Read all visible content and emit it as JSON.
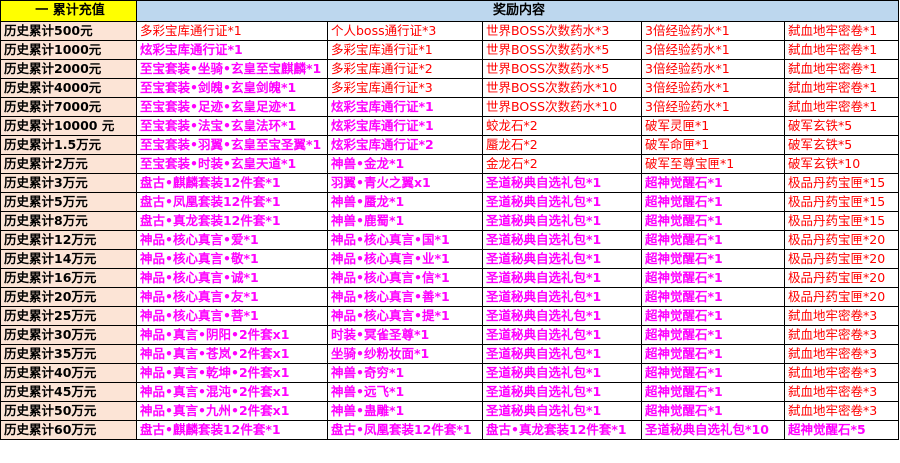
{
  "colors": {
    "red": "#ff0000",
    "magenta": "#ff00ff",
    "header_left": "#ffff00",
    "header_right": "#bdd7ee",
    "level_column": "#fce4d6"
  },
  "header": {
    "col1": "一  累计充值",
    "col2": "奖励内容"
  },
  "rows": [
    {
      "level": "历史累计500元",
      "cells": [
        {
          "text": "多彩宝库通行证*1",
          "style": "r"
        },
        {
          "text": "个人boss通行证*3",
          "style": "r"
        },
        {
          "text": "世界BOSS次数药水*3",
          "style": "r"
        },
        {
          "text": "3倍经验药水*1",
          "style": "r"
        },
        {
          "text": "弑血地牢密卷*1",
          "style": "r"
        }
      ]
    },
    {
      "level": "历史累计1000元",
      "cells": [
        {
          "text": "炫彩宝库通行证*1",
          "style": "m"
        },
        {
          "text": "多彩宝库通行证*1",
          "style": "r"
        },
        {
          "text": "世界BOSS次数药水*5",
          "style": "r"
        },
        {
          "text": "3倍经验药水*1",
          "style": "r"
        },
        {
          "text": "弑血地牢密卷*1",
          "style": "r"
        }
      ]
    },
    {
      "level": "历史累计2000元",
      "cells": [
        {
          "text": "至宝套装•坐骑•玄皇至宝麒麟*1",
          "style": "m"
        },
        {
          "text": "多彩宝库通行证*2",
          "style": "r"
        },
        {
          "text": "世界BOSS次数药水*5",
          "style": "r"
        },
        {
          "text": "3倍经验药水*1",
          "style": "r"
        },
        {
          "text": "弑血地牢密卷*1",
          "style": "r"
        }
      ]
    },
    {
      "level": "历史累计4000元",
      "cells": [
        {
          "text": "至宝套装•剑魄•玄皇剑魄*1",
          "style": "m"
        },
        {
          "text": "多彩宝库通行证*3",
          "style": "r"
        },
        {
          "text": "世界BOSS次数药水*10",
          "style": "r"
        },
        {
          "text": "3倍经验药水*1",
          "style": "r"
        },
        {
          "text": "弑血地牢密卷*1",
          "style": "r"
        }
      ]
    },
    {
      "level": "历史累计7000元",
      "cells": [
        {
          "text": "至宝套装•足迹•玄皇足迹*1",
          "style": "m"
        },
        {
          "text": "炫彩宝库通行证*1",
          "style": "m"
        },
        {
          "text": "世界BOSS次数药水*10",
          "style": "r"
        },
        {
          "text": "3倍经验药水*1",
          "style": "r"
        },
        {
          "text": "弑血地牢密卷*1",
          "style": "r"
        }
      ]
    },
    {
      "level": "历史累计10000 元",
      "cells": [
        {
          "text": "至宝套装•法宝•玄皇法环*1",
          "style": "m"
        },
        {
          "text": "炫彩宝库通行证*1",
          "style": "m"
        },
        {
          "text": "蛟龙石*2",
          "style": "r"
        },
        {
          "text": "破军灵匣*1",
          "style": "r"
        },
        {
          "text": "破军玄铁*5",
          "style": "r"
        }
      ]
    },
    {
      "level": "历史累计1.5万元",
      "cells": [
        {
          "text": "至宝套装•羽翼•玄皇至宝圣翼*1",
          "style": "m"
        },
        {
          "text": "炫彩宝库通行证*2",
          "style": "m"
        },
        {
          "text": "蜃龙石*2",
          "style": "r"
        },
        {
          "text": "破军命匣*1",
          "style": "r"
        },
        {
          "text": "破军玄铁*5",
          "style": "r"
        }
      ]
    },
    {
      "level": "历史累计2万元",
      "cells": [
        {
          "text": "至宝套装•时装•玄皇天道*1",
          "style": "m"
        },
        {
          "text": "神兽•金龙*1",
          "style": "m"
        },
        {
          "text": "金龙石*2",
          "style": "r"
        },
        {
          "text": "破军至尊宝匣*1",
          "style": "r"
        },
        {
          "text": "破军玄铁*10",
          "style": "r"
        }
      ]
    },
    {
      "level": "历史累计3万元",
      "cells": [
        {
          "text": "盘古•麒麟套装12件套*1",
          "style": "m"
        },
        {
          "text": "羽翼•青火之翼x1",
          "style": "m"
        },
        {
          "text": "圣道秘典自选礼包*1",
          "style": "m"
        },
        {
          "text": "超神觉醒石*1",
          "style": "m"
        },
        {
          "text": "极品丹药宝匣*15",
          "style": "r"
        }
      ]
    },
    {
      "level": "历史累计5万元",
      "cells": [
        {
          "text": "盘古•凤凰套装12件套*1",
          "style": "m"
        },
        {
          "text": "神兽•蜃龙*1",
          "style": "m"
        },
        {
          "text": "圣道秘典自选礼包*1",
          "style": "m"
        },
        {
          "text": "超神觉醒石*1",
          "style": "m"
        },
        {
          "text": "极品丹药宝匣*15",
          "style": "r"
        }
      ]
    },
    {
      "level": "历史累计8万元",
      "cells": [
        {
          "text": "盘古•真龙套装12件套*1",
          "style": "m"
        },
        {
          "text": "神兽•鹿蜀*1",
          "style": "m"
        },
        {
          "text": "圣道秘典自选礼包*1",
          "style": "m"
        },
        {
          "text": "超神觉醒石*1",
          "style": "m"
        },
        {
          "text": "极品丹药宝匣*15",
          "style": "r"
        }
      ]
    },
    {
      "level": "历史累计12万元",
      "cells": [
        {
          "text": "神品•核心真言•爱*1",
          "style": "m"
        },
        {
          "text": "神品•核心真言•国*1",
          "style": "m"
        },
        {
          "text": "圣道秘典自选礼包*1",
          "style": "m"
        },
        {
          "text": "超神觉醒石*1",
          "style": "m"
        },
        {
          "text": "极品丹药宝匣*20",
          "style": "r"
        }
      ]
    },
    {
      "level": "历史累计14万元",
      "cells": [
        {
          "text": "神品•核心真言•敬*1",
          "style": "m"
        },
        {
          "text": "神品•核心真言•业*1",
          "style": "m"
        },
        {
          "text": "圣道秘典自选礼包*1",
          "style": "m"
        },
        {
          "text": "超神觉醒石*1",
          "style": "m"
        },
        {
          "text": "极品丹药宝匣*20",
          "style": "r"
        }
      ]
    },
    {
      "level": "历史累计16万元",
      "cells": [
        {
          "text": "神品•核心真言•诚*1",
          "style": "m"
        },
        {
          "text": "神品•核心真言•信*1",
          "style": "m"
        },
        {
          "text": "圣道秘典自选礼包*1",
          "style": "m"
        },
        {
          "text": "超神觉醒石*1",
          "style": "m"
        },
        {
          "text": "极品丹药宝匣*20",
          "style": "r"
        }
      ]
    },
    {
      "level": "历史累计20万元",
      "cells": [
        {
          "text": "神品•核心真言•友*1",
          "style": "m"
        },
        {
          "text": "神品•核心真言•善*1",
          "style": "m"
        },
        {
          "text": "圣道秘典自选礼包*1",
          "style": "m"
        },
        {
          "text": "超神觉醒石*1",
          "style": "m"
        },
        {
          "text": "极品丹药宝匣*20",
          "style": "r"
        }
      ]
    },
    {
      "level": "历史累计25万元",
      "cells": [
        {
          "text": "神品•核心真言•菩*1",
          "style": "m"
        },
        {
          "text": "神品•核心真言•提*1",
          "style": "m"
        },
        {
          "text": "圣道秘典自选礼包*1",
          "style": "m"
        },
        {
          "text": "超神觉醒石*1",
          "style": "m"
        },
        {
          "text": "弑血地牢密卷*3",
          "style": "r"
        }
      ]
    },
    {
      "level": "历史累计30万元",
      "cells": [
        {
          "text": "神品•真言•阴阳•2件套x1",
          "style": "m"
        },
        {
          "text": "时装•冥雀圣尊*1",
          "style": "m"
        },
        {
          "text": "圣道秘典自选礼包*1",
          "style": "m"
        },
        {
          "text": "超神觉醒石*1",
          "style": "m"
        },
        {
          "text": "弑血地牢密卷*3",
          "style": "r"
        }
      ]
    },
    {
      "level": "历史累计35万元",
      "cells": [
        {
          "text": "神品•真言•苍岚•2件套x1",
          "style": "m"
        },
        {
          "text": "坐骑•纱粉妆面*1",
          "style": "m"
        },
        {
          "text": "圣道秘典自选礼包*1",
          "style": "m"
        },
        {
          "text": "超神觉醒石*1",
          "style": "m"
        },
        {
          "text": "弑血地牢密卷*3",
          "style": "r"
        }
      ]
    },
    {
      "level": "历史累计40万元",
      "cells": [
        {
          "text": "神品•真言•乾坤•2件套x1",
          "style": "m"
        },
        {
          "text": "神兽•奇穷*1",
          "style": "m"
        },
        {
          "text": "圣道秘典自选礼包*1",
          "style": "m"
        },
        {
          "text": "超神觉醒石*1",
          "style": "m"
        },
        {
          "text": "弑血地牢密卷*3",
          "style": "r"
        }
      ]
    },
    {
      "level": "历史累计45万元",
      "cells": [
        {
          "text": "神品•真言•混沌•2件套x1",
          "style": "m"
        },
        {
          "text": "神兽•远飞*1",
          "style": "m"
        },
        {
          "text": "圣道秘典自选礼包*1",
          "style": "m"
        },
        {
          "text": "超神觉醒石*1",
          "style": "m"
        },
        {
          "text": "弑血地牢密卷*3",
          "style": "r"
        }
      ]
    },
    {
      "level": "历史累计50万元",
      "cells": [
        {
          "text": "神品•真言•九州•2件套x1",
          "style": "m"
        },
        {
          "text": "神兽•蛊雕*1",
          "style": "m"
        },
        {
          "text": "圣道秘典自选礼包*1",
          "style": "m"
        },
        {
          "text": "超神觉醒石*1",
          "style": "m"
        },
        {
          "text": "弑血地牢密卷*3",
          "style": "r"
        }
      ]
    },
    {
      "level": "历史累计60万元",
      "cells": [
        {
          "text": "盘古•麒麟套装12件套*1",
          "style": "m"
        },
        {
          "text": "盘古•凤凰套装12件套*1",
          "style": "m"
        },
        {
          "text": "盘古•真龙套装12件套*1",
          "style": "m"
        },
        {
          "text": "圣道秘典自选礼包*10",
          "style": "m"
        },
        {
          "text": "超神觉醒石*5",
          "style": "m"
        }
      ]
    }
  ]
}
